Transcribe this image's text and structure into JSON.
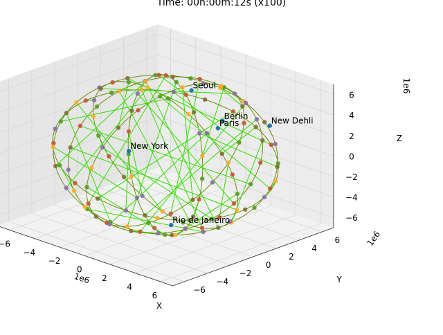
{
  "chart_data": {
    "type": "3d-scatter-line",
    "title": "Time: 00h:00m:12s (x100)",
    "xlabel": "X",
    "ylabel": "Y",
    "zlabel": "Z",
    "axis_scale_label": "1e6",
    "xlim": [
      -7,
      7
    ],
    "ylim": [
      -7,
      7
    ],
    "zlim": [
      -7,
      7
    ],
    "x_ticks": [
      "−6",
      "−4",
      "−2",
      "0",
      "2",
      "4",
      "6"
    ],
    "y_ticks": [
      "−6",
      "−4",
      "−2",
      "0",
      "2",
      "4",
      "6"
    ],
    "z_ticks": [
      "−6",
      "−4",
      "−2",
      "0",
      "2",
      "4",
      "6"
    ],
    "grid": true,
    "colors": {
      "orbit_line": "#6b8e0a",
      "link_line": "#33dd00",
      "point_palette": [
        "#4d9a1c",
        "#c0502a",
        "#7a6a2e",
        "#8866aa",
        "#ffaa22"
      ],
      "city_marker": "#2277aa"
    },
    "cities": [
      {
        "name": "Seoul"
      },
      {
        "name": "New Dehli"
      },
      {
        "name": "Berlin"
      },
      {
        "name": "Paris"
      },
      {
        "name": "New York"
      },
      {
        "name": "Rio de Janeiro"
      }
    ]
  }
}
